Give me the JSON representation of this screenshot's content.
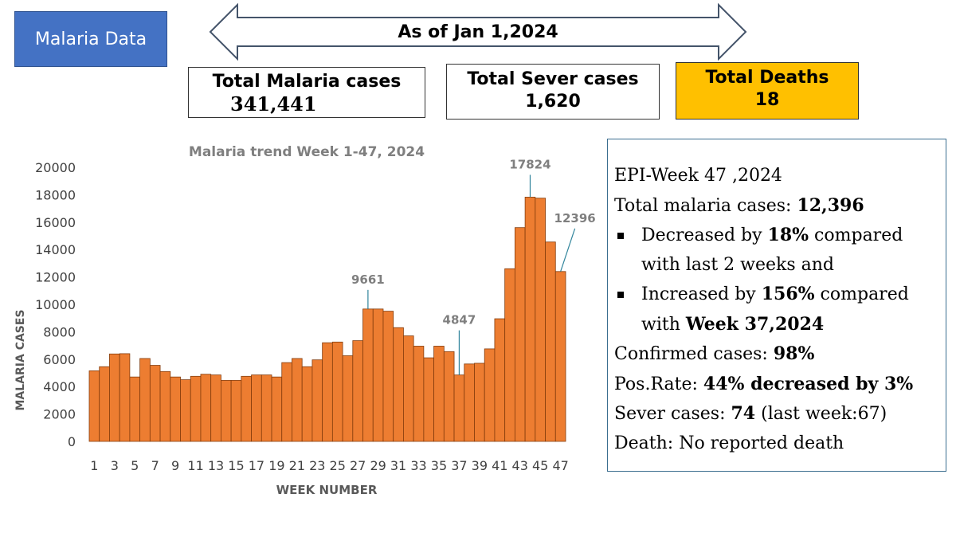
{
  "header": {
    "title": "Malaria Data",
    "as_of": "As of Jan 1,2024"
  },
  "stats": {
    "total_cases_label": "Total Malaria cases",
    "total_cases_value": "341,441",
    "total_severe_label": "Total Sever cases",
    "total_severe_value": "1,620",
    "total_deaths_label": "Total Deaths",
    "total_deaths_value": "18"
  },
  "colors": {
    "badge": "#4472c4",
    "deaths_box": "#ffc000",
    "bar_fill": "#ed7d31",
    "bar_stroke": "#843c0c"
  },
  "chart_data": {
    "type": "bar",
    "title": "Malaria trend Week 1-47, 2024",
    "xlabel": "WEEK NUMBER",
    "ylabel": "MALARIA CASES",
    "ylim": [
      0,
      20000
    ],
    "yticks": [
      0,
      2000,
      4000,
      6000,
      8000,
      10000,
      12000,
      14000,
      16000,
      18000,
      20000
    ],
    "categories": [
      1,
      2,
      3,
      4,
      5,
      6,
      7,
      8,
      9,
      10,
      11,
      12,
      13,
      14,
      15,
      16,
      17,
      18,
      19,
      20,
      21,
      22,
      23,
      24,
      25,
      26,
      27,
      28,
      29,
      30,
      31,
      32,
      33,
      34,
      35,
      36,
      37,
      38,
      39,
      40,
      41,
      42,
      43,
      44,
      45,
      46,
      47
    ],
    "xtick_labels": [
      "1",
      "3",
      "5",
      "7",
      "9",
      "11",
      "13",
      "15",
      "17",
      "19",
      "21",
      "23",
      "25",
      "27",
      "29",
      "31",
      "33",
      "35",
      "37",
      "39",
      "41",
      "43",
      "45",
      "47"
    ],
    "values": [
      5150,
      5450,
      6380,
      6400,
      4700,
      6050,
      5550,
      5100,
      4700,
      4500,
      4750,
      4900,
      4850,
      4450,
      4450,
      4750,
      4850,
      4850,
      4700,
      5750,
      6050,
      5450,
      5950,
      7200,
      7250,
      6250,
      7350,
      9661,
      9661,
      9500,
      8300,
      7700,
      6950,
      6100,
      6950,
      6550,
      4847,
      5650,
      5700,
      6750,
      8950,
      12600,
      15600,
      17824,
      17750,
      14550,
      12396
    ],
    "annotations": [
      {
        "week": 28,
        "label": "9661"
      },
      {
        "week": 37,
        "label": "4847"
      },
      {
        "week": 44,
        "label": "17824"
      },
      {
        "week": 47,
        "label": "12396"
      }
    ]
  },
  "info": {
    "week": "EPI-Week 47 ,2024",
    "total_label": "Total malaria cases: ",
    "total_value": "12,396",
    "dec_pre": "Decreased by ",
    "dec_value": "18%",
    "dec_post": " compared",
    "dec_line2": "with last 2 weeks and",
    "inc_pre": "Increased by ",
    "inc_value": "156%",
    "inc_post": " compared",
    "inc_line2_pre": "with ",
    "inc_line2_bold": "Week 37,2024",
    "confirmed_label": "Confirmed cases: ",
    "confirmed_value": "98%",
    "pos_label": "Pos.Rate: ",
    "pos_value": "44% decreased by 3%",
    "severe_label": "Sever cases: ",
    "severe_value": "74",
    "severe_post": " (last week:67)",
    "death_text": "Death: No reported death"
  }
}
